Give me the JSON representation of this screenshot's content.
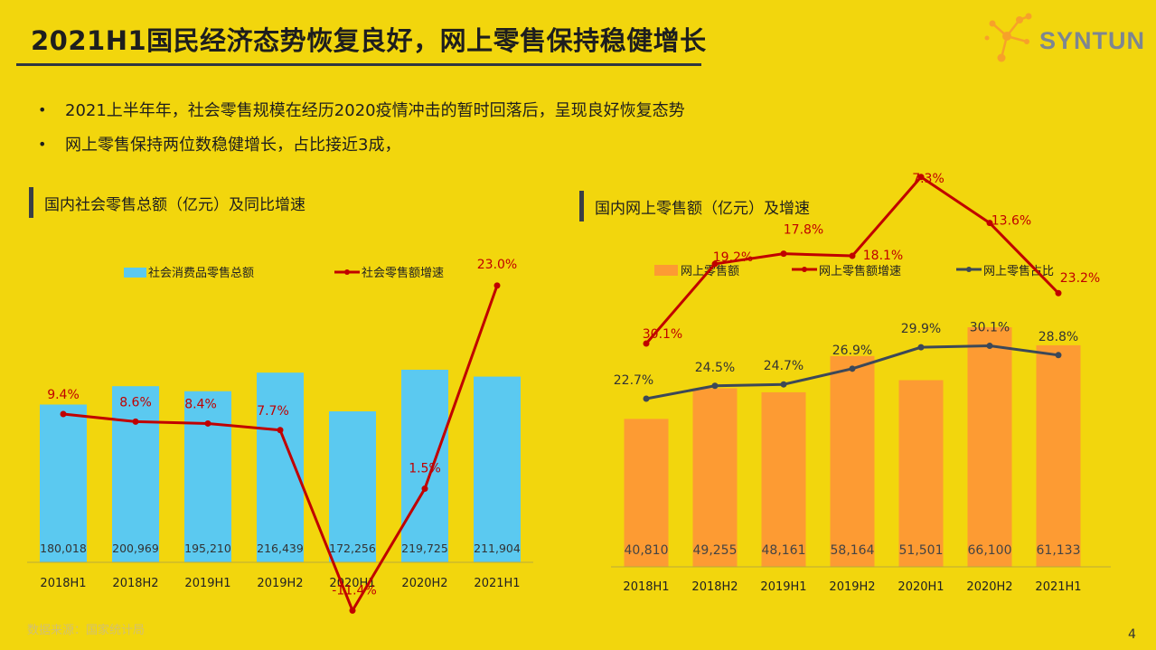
{
  "title": "2021H1国民经济态势恢复良好，网上零售保持稳健增长",
  "logo_text": "SYNTUN",
  "bullets": [
    "2021上半年年，社会零售规模在经历2020疫情冲击的暂时回落后，呈现良好恢复态势",
    "网上零售保持两位数稳健增长，占比接近3成，"
  ],
  "footer": "数据来源：国家统计局",
  "page_number": "4",
  "colors": {
    "background": "#f2d60d",
    "bar_blue": "#5bc9f0",
    "bar_orange": "#fd9b33",
    "line_red": "#c00000",
    "line_navy": "#3c4858"
  },
  "chart_data": [
    {
      "type": "bar",
      "title": "国内社会零售总额（亿元）及同比增速",
      "categories": [
        "2018H1",
        "2018H2",
        "2019H1",
        "2019H2",
        "2020H1",
        "2020H2",
        "2021H1"
      ],
      "series": [
        {
          "name": "社会消费品零售总额",
          "type": "bar",
          "values": [
            180018,
            200969,
            195210,
            216439,
            172256,
            219725,
            211904
          ],
          "labels": [
            "180,018",
            "200,969",
            "195,210",
            "216,439",
            "172,256",
            "219,725",
            "211,904"
          ]
        },
        {
          "name": "社会零售额增速",
          "type": "line",
          "values": [
            9.4,
            8.6,
            8.4,
            7.7,
            -11.4,
            1.5,
            23.0
          ],
          "labels": [
            "9.4%",
            "8.6%",
            "8.4%",
            "7.7%",
            "-11.4%",
            "1.5%",
            "23.0%"
          ]
        }
      ],
      "legend": "top"
    },
    {
      "type": "bar",
      "title": "国内网上零售额（亿元）及增速",
      "categories": [
        "2018H1",
        "2018H2",
        "2019H1",
        "2019H2",
        "2020H1",
        "2020H2",
        "2021H1"
      ],
      "series": [
        {
          "name": "网上零售额",
          "type": "bar",
          "values": [
            40810,
            49255,
            48161,
            58164,
            51501,
            66100,
            61133
          ],
          "labels": [
            "40,810",
            "49,255",
            "48,161",
            "58,164",
            "51,501",
            "66,100",
            "61,133"
          ]
        },
        {
          "name": "网上零售额增速",
          "type": "line",
          "values": [
            30.1,
            19.2,
            17.8,
            18.1,
            7.3,
            13.6,
            23.2
          ],
          "labels": [
            "30.1%",
            "19.2%",
            "17.8%",
            "18.1%",
            "7.3%",
            "13.6%",
            "23.2%"
          ]
        },
        {
          "name": "网上零售占比",
          "type": "line",
          "values": [
            22.7,
            24.5,
            24.7,
            26.9,
            29.9,
            30.1,
            28.8
          ],
          "labels": [
            "22.7%",
            "24.5%",
            "24.7%",
            "26.9%",
            "29.9%",
            "30.1%",
            "28.8%"
          ]
        }
      ],
      "legend": "top"
    }
  ]
}
